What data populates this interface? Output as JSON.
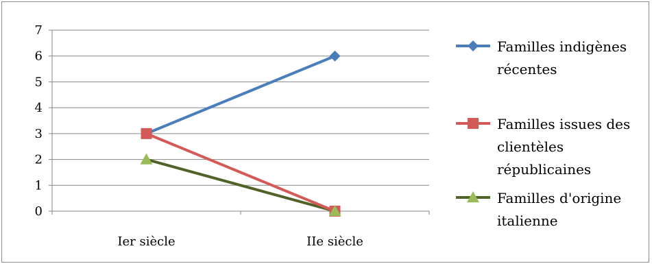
{
  "chart_data": {
    "type": "line",
    "title": "",
    "xlabel": "",
    "ylabel": "",
    "categories": [
      "Ier siècle",
      "IIe siècle"
    ],
    "ylim": [
      0,
      7
    ],
    "yticks": [
      "0",
      "1",
      "2",
      "3",
      "4",
      "5",
      "6",
      "7"
    ],
    "grid": true,
    "legend_position": "right",
    "series": [
      {
        "name": "Familles indigènes récentes",
        "legend_lines": [
          "Familles indigènes",
          "récentes"
        ],
        "values": [
          3,
          6
        ],
        "color": "#4a7ebb",
        "marker": "diamond"
      },
      {
        "name": "Familles issues des clientèles républicaines",
        "legend_lines": [
          "Familles issues des",
          "clientèles",
          "républicaines"
        ],
        "values": [
          3,
          0
        ],
        "color": "#d35a57",
        "marker": "square"
      },
      {
        "name": "Familles d'origine italienne",
        "legend_lines": [
          "Familles d'origine",
          "italienne"
        ],
        "values": [
          2,
          0
        ],
        "color": "#4f6228",
        "marker_color": "#9bbb59",
        "marker": "triangle"
      }
    ]
  }
}
